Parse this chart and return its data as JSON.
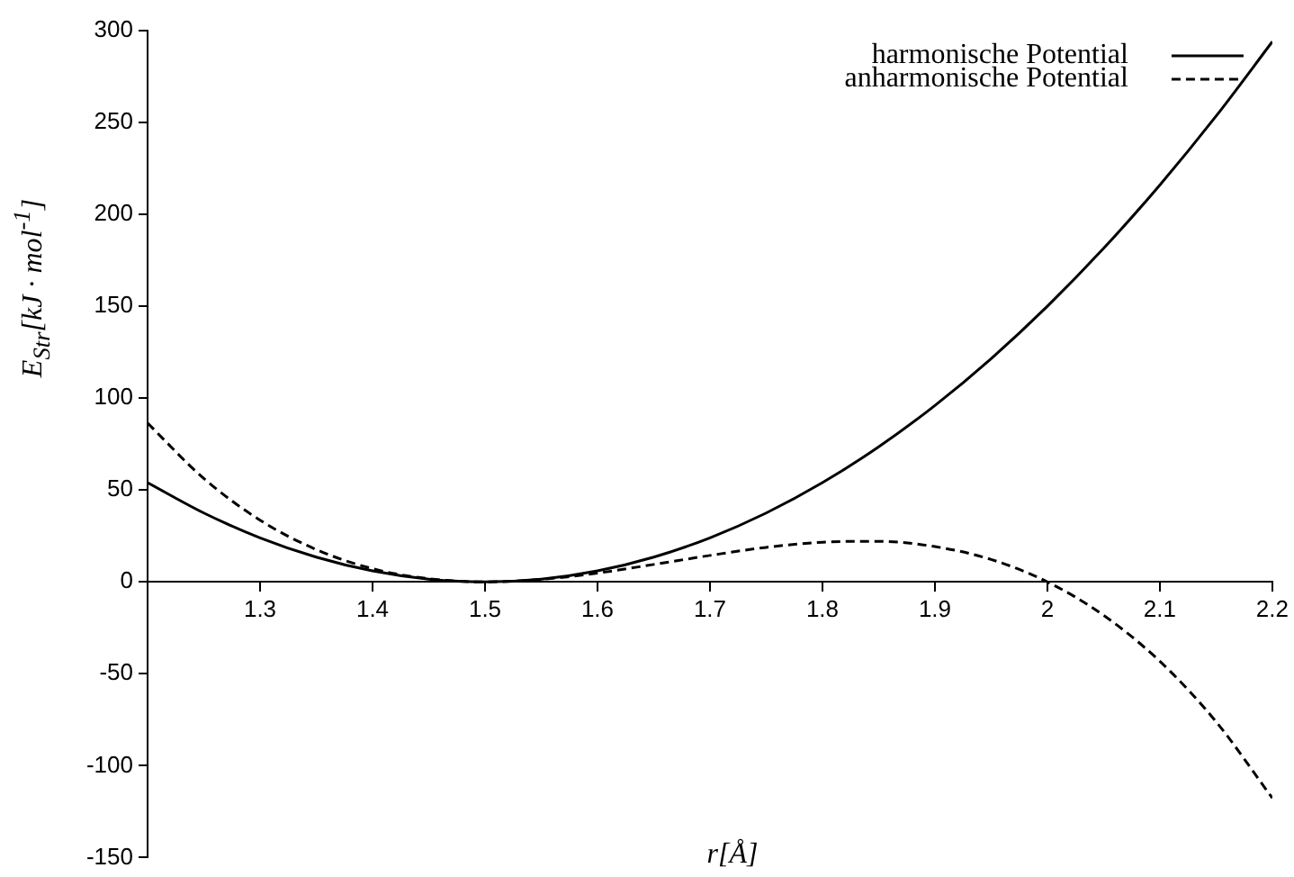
{
  "chart_data": {
    "type": "line",
    "xlabel": "r[Å]",
    "ylabel": "E$_{Str}$[kJ · mol$^{-1}$]",
    "x": [
      1.2,
      1.25,
      1.3,
      1.35,
      1.4,
      1.45,
      1.5,
      1.55,
      1.6,
      1.65,
      1.7,
      1.75,
      1.8,
      1.85,
      1.9,
      1.95,
      2.0,
      2.05,
      2.1,
      2.15,
      2.2
    ],
    "series": [
      {
        "name": "harmonische Potential",
        "color": "#000000",
        "line_style": "solid",
        "values": [
          54,
          37.5,
          24,
          13.5,
          6,
          1.5,
          0,
          1.5,
          6,
          13.5,
          24,
          37.5,
          54,
          73.5,
          96,
          121.5,
          150,
          181.5,
          216,
          253.5,
          294
        ]
      },
      {
        "name": "anharmonische Potential",
        "color": "#000000",
        "line_style": "dashed",
        "values": [
          86.4,
          56.3,
          33.6,
          17.6,
          7.2,
          1.7,
          0,
          1.4,
          4.8,
          9.5,
          14.4,
          18.8,
          21.6,
          22.1,
          19.2,
          12.2,
          0,
          -18.2,
          -43.2,
          -76.1,
          -117.6
        ]
      }
    ],
    "xlim": [
      1.2,
      2.2
    ],
    "xticks": [
      1.3,
      1.4,
      1.5,
      1.6,
      1.7,
      1.8,
      1.9,
      2,
      2.1,
      2.2
    ],
    "ylim": [
      -150,
      300
    ],
    "yticks": [
      -150,
      -100,
      -50,
      0,
      50,
      100,
      150,
      200,
      250,
      300
    ],
    "grid": false,
    "legend": "top right",
    "marker": "none"
  }
}
